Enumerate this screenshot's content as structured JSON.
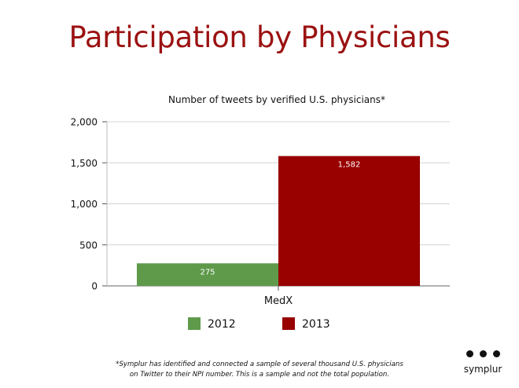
{
  "slide": {
    "title": "Participation by Physicians",
    "footnote_line1": "*Symplur has identified and connected a sample of several thousand U.S. physicians",
    "footnote_line2": "on Twitter to their NPI number. This is a sample and not the total population.",
    "brand_name": "symplur"
  },
  "chart_data": {
    "type": "bar",
    "title": "Number of tweets by verified U.S. physicians*",
    "xlabel": "",
    "ylabel": "",
    "categories": [
      "MedX"
    ],
    "series": [
      {
        "name": "2012",
        "values": [
          275
        ],
        "color": "#5e9a4a"
      },
      {
        "name": "2013",
        "values": [
          1582
        ],
        "color": "#990000"
      }
    ],
    "ylim": [
      0,
      2000
    ],
    "yticks": [
      0,
      500,
      1000,
      1500,
      2000
    ],
    "ytick_labels": [
      "0",
      "500",
      "1,000",
      "1,500",
      "2,000"
    ],
    "data_labels": [
      "275",
      "1,582"
    ],
    "grid": true,
    "legend_position": "bottom"
  }
}
